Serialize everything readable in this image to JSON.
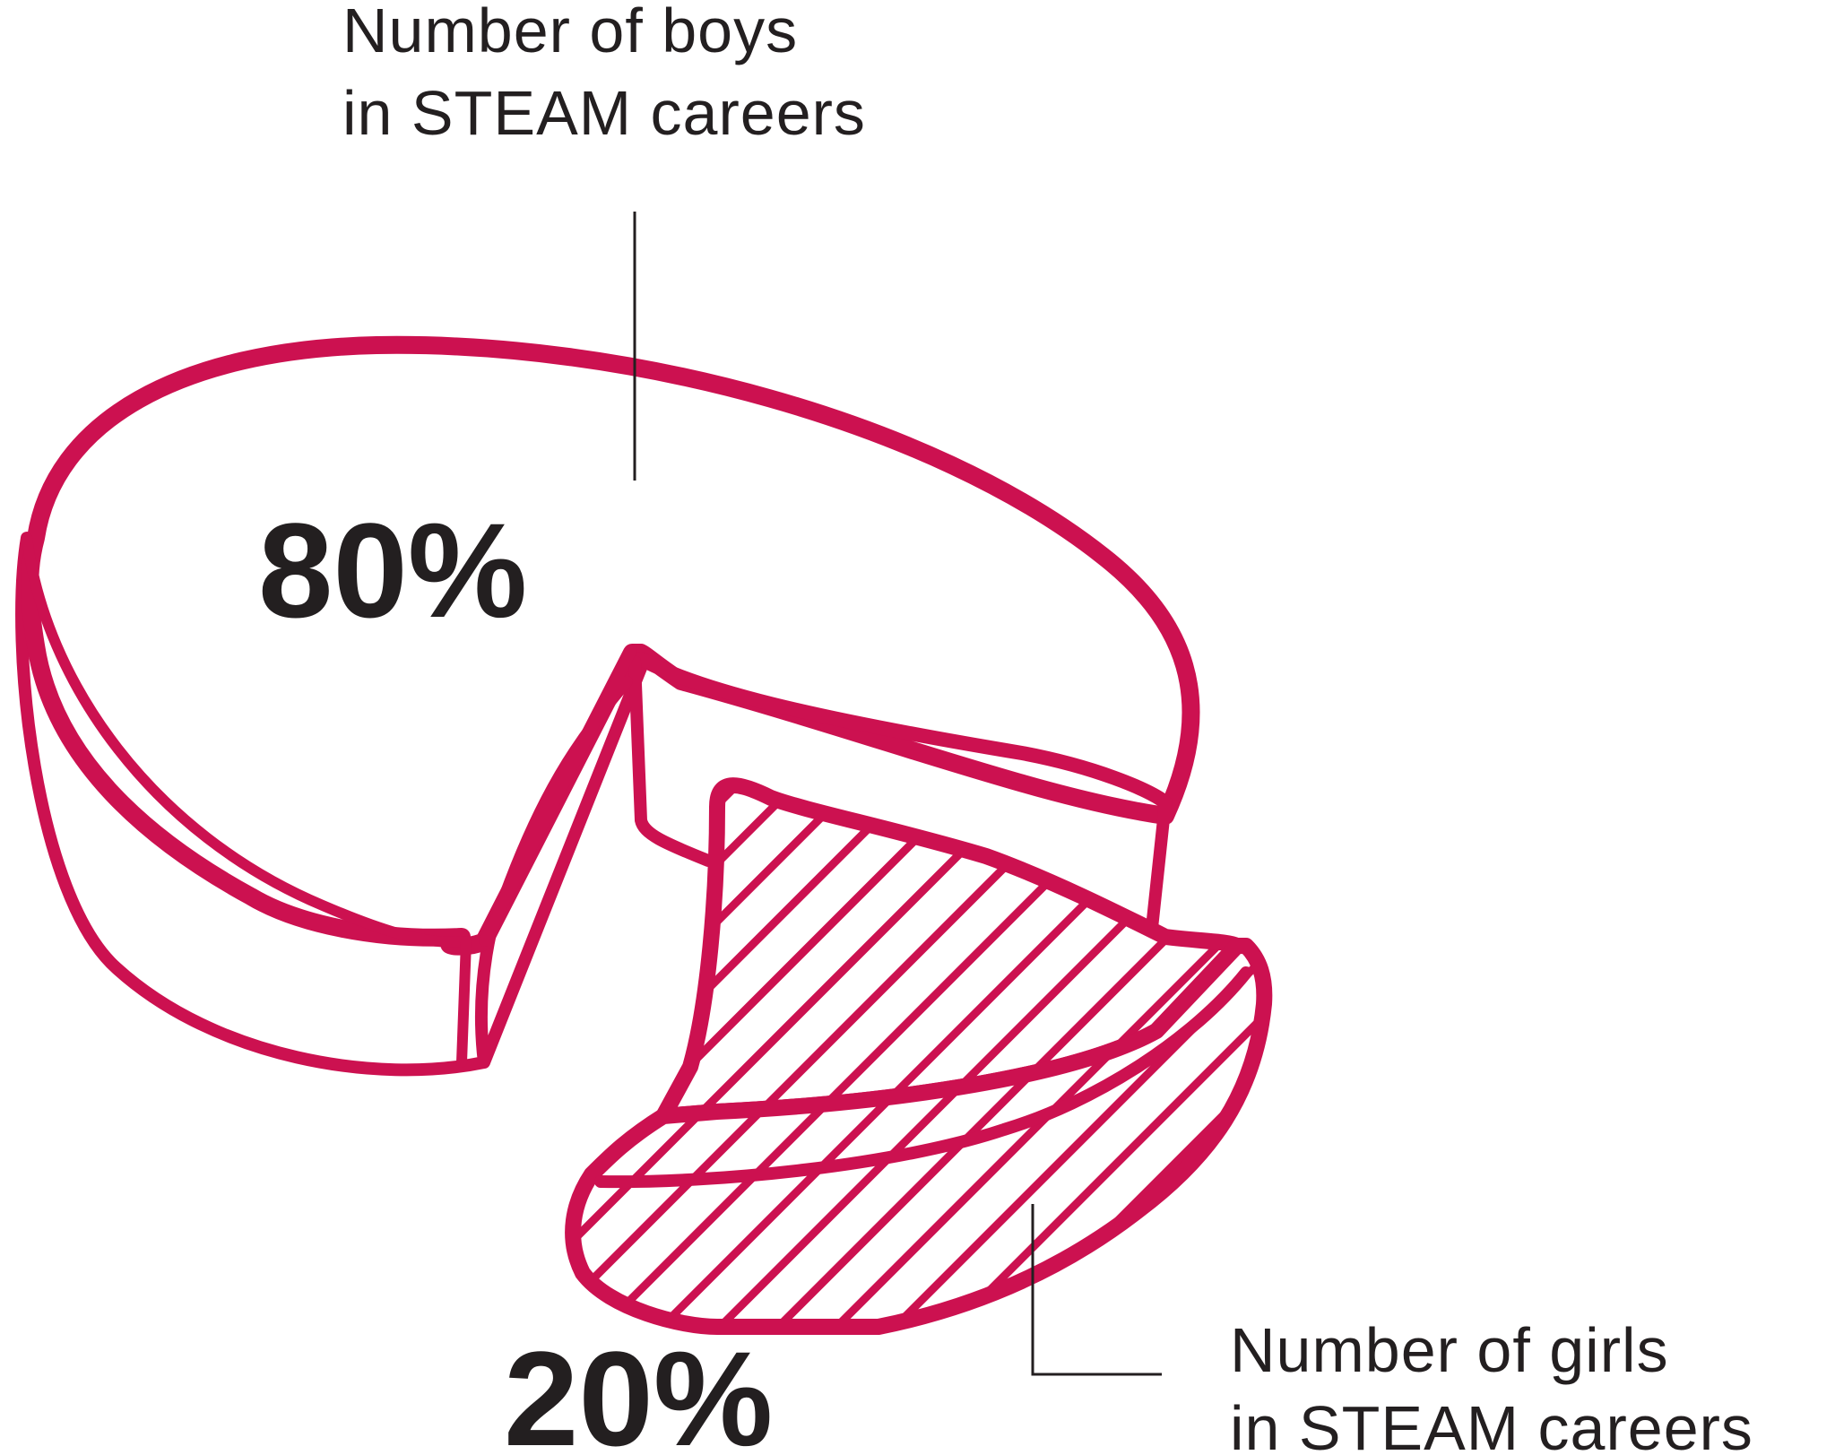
{
  "chart_data": {
    "type": "pie",
    "title": "",
    "style": "hand-drawn 3D pie with exploded hatched slice",
    "slices": [
      {
        "key": "boys",
        "label_lines": [
          "Number of boys",
          "in STEAM  careers"
        ],
        "value": 80,
        "value_label": "80%",
        "color": "#cc1150",
        "fill": "white"
      },
      {
        "key": "girls",
        "label_lines": [
          "Number of girls",
          "in STEAM  careers"
        ],
        "value": 20,
        "value_label": "20%",
        "color": "#cc1150",
        "fill": "diagonal hatching"
      }
    ],
    "legend": "none",
    "text_color": "#231f20",
    "leader_line_color": "#231f20"
  }
}
